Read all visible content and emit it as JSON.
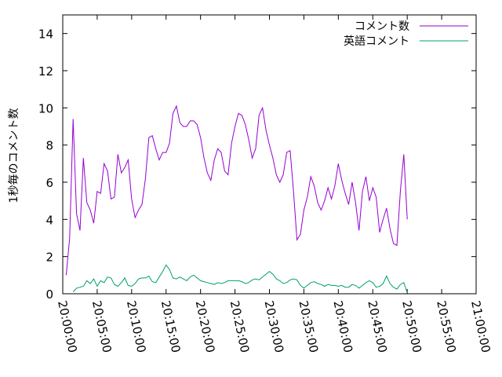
{
  "chart_data": {
    "type": "line",
    "title": "",
    "xlabel": "",
    "ylabel": "1秒毎のコメント数",
    "ylim": [
      0,
      15
    ],
    "yticks": [
      0,
      2,
      4,
      6,
      8,
      10,
      12,
      14
    ],
    "xlim": [
      "20:00:00",
      "21:00:00"
    ],
    "xtick_labels": [
      "20:00:00",
      "20:05:00",
      "20:10:00",
      "20:15:00",
      "20:20:00",
      "20:25:00",
      "20:30:00",
      "20:35:00",
      "20:40:00",
      "20:45:00",
      "20:50:00",
      "20:55:00",
      "21:00:00"
    ],
    "legend_position": "top-right",
    "grid": false,
    "series": [
      {
        "name": "コメント数",
        "color": "#9400d3",
        "points": [
          [
            "20:00:30",
            1.0
          ],
          [
            "20:01:00",
            3.0
          ],
          [
            "20:01:30",
            9.4
          ],
          [
            "20:02:00",
            4.3
          ],
          [
            "20:02:30",
            3.4
          ],
          [
            "20:03:00",
            7.3
          ],
          [
            "20:03:30",
            4.9
          ],
          [
            "20:04:00",
            4.5
          ],
          [
            "20:04:30",
            3.8
          ],
          [
            "20:05:00",
            5.5
          ],
          [
            "20:05:30",
            5.4
          ],
          [
            "20:06:00",
            7.0
          ],
          [
            "20:06:30",
            6.6
          ],
          [
            "20:07:00",
            5.1
          ],
          [
            "20:07:30",
            5.2
          ],
          [
            "20:08:00",
            7.5
          ],
          [
            "20:08:30",
            6.5
          ],
          [
            "20:09:00",
            6.8
          ],
          [
            "20:09:30",
            7.2
          ],
          [
            "20:10:00",
            5.1
          ],
          [
            "20:10:30",
            4.1
          ],
          [
            "20:11:00",
            4.5
          ],
          [
            "20:11:30",
            4.8
          ],
          [
            "20:12:00",
            6.2
          ],
          [
            "20:12:30",
            8.4
          ],
          [
            "20:13:00",
            8.5
          ],
          [
            "20:13:30",
            7.8
          ],
          [
            "20:14:00",
            7.2
          ],
          [
            "20:14:30",
            7.6
          ],
          [
            "20:15:00",
            7.6
          ],
          [
            "20:15:30",
            8.1
          ],
          [
            "20:16:00",
            9.7
          ],
          [
            "20:16:30",
            10.1
          ],
          [
            "20:17:00",
            9.2
          ],
          [
            "20:17:30",
            9.0
          ],
          [
            "20:18:00",
            9.0
          ],
          [
            "20:18:30",
            9.3
          ],
          [
            "20:19:00",
            9.3
          ],
          [
            "20:19:30",
            9.1
          ],
          [
            "20:20:00",
            8.4
          ],
          [
            "20:20:30",
            7.3
          ],
          [
            "20:21:00",
            6.5
          ],
          [
            "20:21:30",
            6.1
          ],
          [
            "20:22:00",
            7.2
          ],
          [
            "20:22:30",
            7.8
          ],
          [
            "20:23:00",
            7.6
          ],
          [
            "20:23:30",
            6.6
          ],
          [
            "20:24:00",
            6.4
          ],
          [
            "20:24:30",
            8.1
          ],
          [
            "20:25:00",
            9.0
          ],
          [
            "20:25:30",
            9.7
          ],
          [
            "20:26:00",
            9.6
          ],
          [
            "20:26:30",
            9.1
          ],
          [
            "20:27:00",
            8.3
          ],
          [
            "20:27:30",
            7.3
          ],
          [
            "20:28:00",
            7.8
          ],
          [
            "20:28:30",
            9.6
          ],
          [
            "20:29:00",
            10.0
          ],
          [
            "20:29:30",
            8.8
          ],
          [
            "20:30:00",
            8.0
          ],
          [
            "20:30:30",
            7.3
          ],
          [
            "20:31:00",
            6.4
          ],
          [
            "20:31:30",
            6.0
          ],
          [
            "20:32:00",
            6.4
          ],
          [
            "20:32:30",
            7.6
          ],
          [
            "20:33:00",
            7.7
          ],
          [
            "20:33:30",
            5.5
          ],
          [
            "20:34:00",
            2.9
          ],
          [
            "20:34:30",
            3.2
          ],
          [
            "20:35:00",
            4.5
          ],
          [
            "20:35:30",
            5.2
          ],
          [
            "20:36:00",
            6.3
          ],
          [
            "20:36:30",
            5.8
          ],
          [
            "20:37:00",
            4.9
          ],
          [
            "20:37:30",
            4.5
          ],
          [
            "20:38:00",
            5.0
          ],
          [
            "20:38:30",
            5.7
          ],
          [
            "20:39:00",
            5.1
          ],
          [
            "20:39:30",
            5.8
          ],
          [
            "20:40:00",
            7.0
          ],
          [
            "20:40:30",
            6.1
          ],
          [
            "20:41:00",
            5.4
          ],
          [
            "20:41:30",
            4.8
          ],
          [
            "20:42:00",
            6.0
          ],
          [
            "20:42:30",
            4.9
          ],
          [
            "20:43:00",
            3.4
          ],
          [
            "20:43:30",
            5.5
          ],
          [
            "20:44:00",
            6.3
          ],
          [
            "20:44:30",
            5.0
          ],
          [
            "20:45:00",
            5.7
          ],
          [
            "20:45:30",
            5.2
          ],
          [
            "20:46:00",
            3.3
          ],
          [
            "20:46:30",
            4.0
          ],
          [
            "20:47:00",
            4.6
          ],
          [
            "20:47:30",
            3.5
          ],
          [
            "20:48:00",
            2.7
          ],
          [
            "20:48:30",
            2.6
          ],
          [
            "20:49:00",
            5.5
          ],
          [
            "20:49:30",
            7.5
          ],
          [
            "20:50:00",
            4.0
          ]
        ]
      },
      {
        "name": "英語コメント",
        "color": "#009e73",
        "points": [
          [
            "20:01:30",
            0.1
          ],
          [
            "20:02:00",
            0.3
          ],
          [
            "20:02:30",
            0.35
          ],
          [
            "20:03:00",
            0.4
          ],
          [
            "20:03:30",
            0.7
          ],
          [
            "20:04:00",
            0.55
          ],
          [
            "20:04:30",
            0.8
          ],
          [
            "20:05:00",
            0.4
          ],
          [
            "20:05:30",
            0.7
          ],
          [
            "20:06:00",
            0.6
          ],
          [
            "20:06:30",
            0.9
          ],
          [
            "20:07:00",
            0.85
          ],
          [
            "20:07:30",
            0.5
          ],
          [
            "20:08:00",
            0.4
          ],
          [
            "20:08:30",
            0.6
          ],
          [
            "20:09:00",
            0.85
          ],
          [
            "20:09:30",
            0.45
          ],
          [
            "20:10:00",
            0.4
          ],
          [
            "20:10:30",
            0.55
          ],
          [
            "20:11:00",
            0.8
          ],
          [
            "20:11:30",
            0.85
          ],
          [
            "20:12:00",
            0.85
          ],
          [
            "20:12:30",
            0.95
          ],
          [
            "20:13:00",
            0.65
          ],
          [
            "20:13:30",
            0.6
          ],
          [
            "20:14:00",
            0.9
          ],
          [
            "20:14:30",
            1.2
          ],
          [
            "20:15:00",
            1.55
          ],
          [
            "20:15:30",
            1.3
          ],
          [
            "20:16:00",
            0.85
          ],
          [
            "20:16:30",
            0.8
          ],
          [
            "20:17:00",
            0.9
          ],
          [
            "20:17:30",
            0.8
          ],
          [
            "20:18:00",
            0.7
          ],
          [
            "20:18:30",
            0.9
          ],
          [
            "20:19:00",
            1.0
          ],
          [
            "20:19:30",
            0.85
          ],
          [
            "20:20:00",
            0.7
          ],
          [
            "20:20:30",
            0.65
          ],
          [
            "20:21:00",
            0.6
          ],
          [
            "20:21:30",
            0.55
          ],
          [
            "20:22:00",
            0.5
          ],
          [
            "20:22:30",
            0.6
          ],
          [
            "20:23:00",
            0.55
          ],
          [
            "20:23:30",
            0.6
          ],
          [
            "20:24:00",
            0.7
          ],
          [
            "20:24:30",
            0.7
          ],
          [
            "20:25:00",
            0.7
          ],
          [
            "20:25:30",
            0.7
          ],
          [
            "20:26:00",
            0.65
          ],
          [
            "20:26:30",
            0.55
          ],
          [
            "20:27:00",
            0.6
          ],
          [
            "20:27:30",
            0.75
          ],
          [
            "20:28:00",
            0.8
          ],
          [
            "20:28:30",
            0.75
          ],
          [
            "20:29:00",
            0.9
          ],
          [
            "20:29:30",
            1.05
          ],
          [
            "20:30:00",
            1.2
          ],
          [
            "20:30:30",
            1.05
          ],
          [
            "20:31:00",
            0.8
          ],
          [
            "20:31:30",
            0.7
          ],
          [
            "20:32:00",
            0.55
          ],
          [
            "20:32:30",
            0.6
          ],
          [
            "20:33:00",
            0.75
          ],
          [
            "20:33:30",
            0.8
          ],
          [
            "20:34:00",
            0.75
          ],
          [
            "20:34:30",
            0.45
          ],
          [
            "20:35:00",
            0.3
          ],
          [
            "20:35:30",
            0.45
          ],
          [
            "20:36:00",
            0.6
          ],
          [
            "20:36:30",
            0.65
          ],
          [
            "20:37:00",
            0.55
          ],
          [
            "20:37:30",
            0.5
          ],
          [
            "20:38:00",
            0.4
          ],
          [
            "20:38:30",
            0.5
          ],
          [
            "20:39:00",
            0.45
          ],
          [
            "20:39:30",
            0.45
          ],
          [
            "20:40:00",
            0.4
          ],
          [
            "20:40:30",
            0.45
          ],
          [
            "20:41:00",
            0.35
          ],
          [
            "20:41:30",
            0.35
          ],
          [
            "20:42:00",
            0.5
          ],
          [
            "20:42:30",
            0.45
          ],
          [
            "20:43:00",
            0.3
          ],
          [
            "20:43:30",
            0.45
          ],
          [
            "20:44:00",
            0.6
          ],
          [
            "20:44:30",
            0.7
          ],
          [
            "20:45:00",
            0.6
          ],
          [
            "20:45:30",
            0.35
          ],
          [
            "20:46:00",
            0.4
          ],
          [
            "20:46:30",
            0.55
          ],
          [
            "20:47:00",
            0.95
          ],
          [
            "20:47:30",
            0.55
          ],
          [
            "20:48:00",
            0.35
          ],
          [
            "20:48:30",
            0.25
          ],
          [
            "20:49:00",
            0.5
          ],
          [
            "20:49:30",
            0.6
          ],
          [
            "20:50:00",
            0.05
          ]
        ]
      }
    ]
  }
}
